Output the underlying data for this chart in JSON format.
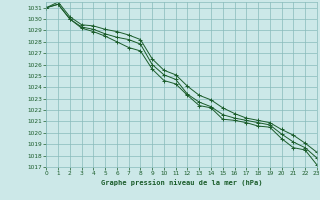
{
  "title": "Graphe pression niveau de la mer (hPa)",
  "bg_color": "#cce8e8",
  "grid_color": "#88bbbb",
  "line_color": "#1a5c2a",
  "xlim": [
    0,
    23
  ],
  "ylim": [
    1017,
    1031.5
  ],
  "xticks": [
    0,
    1,
    2,
    3,
    4,
    5,
    6,
    7,
    8,
    9,
    10,
    11,
    12,
    13,
    14,
    15,
    16,
    17,
    18,
    19,
    20,
    21,
    22,
    23
  ],
  "yticks": [
    1017,
    1018,
    1019,
    1020,
    1021,
    1022,
    1023,
    1024,
    1025,
    1026,
    1027,
    1028,
    1029,
    1030,
    1031
  ],
  "series": [
    [
      1031.0,
      1031.3,
      1030.0,
      1029.2,
      1028.9,
      1028.5,
      1028.0,
      1027.5,
      1027.2,
      1025.6,
      1024.6,
      1024.3,
      1023.3,
      1022.4,
      1022.2,
      1021.2,
      1021.1,
      1020.9,
      1020.6,
      1020.5,
      1019.5,
      1018.7,
      1018.5,
      1017.2
    ],
    [
      1031.0,
      1031.3,
      1030.0,
      1029.3,
      1029.1,
      1028.7,
      1028.4,
      1028.2,
      1027.8,
      1026.0,
      1025.1,
      1024.7,
      1023.4,
      1022.7,
      1022.3,
      1021.6,
      1021.3,
      1021.1,
      1020.9,
      1020.7,
      1019.9,
      1019.2,
      1018.7,
      1017.8
    ],
    [
      1031.0,
      1031.5,
      1030.2,
      1029.5,
      1029.4,
      1029.1,
      1028.9,
      1028.6,
      1028.2,
      1026.5,
      1025.5,
      1025.1,
      1024.1,
      1023.3,
      1022.9,
      1022.2,
      1021.7,
      1021.3,
      1021.1,
      1020.9,
      1020.3,
      1019.8,
      1019.1,
      1018.3
    ]
  ],
  "marker_x": [
    0,
    1,
    2,
    3,
    4,
    5,
    6,
    7,
    8,
    9,
    10,
    11,
    12,
    13,
    14,
    15,
    16,
    17,
    18,
    19,
    20,
    21,
    22,
    23
  ]
}
